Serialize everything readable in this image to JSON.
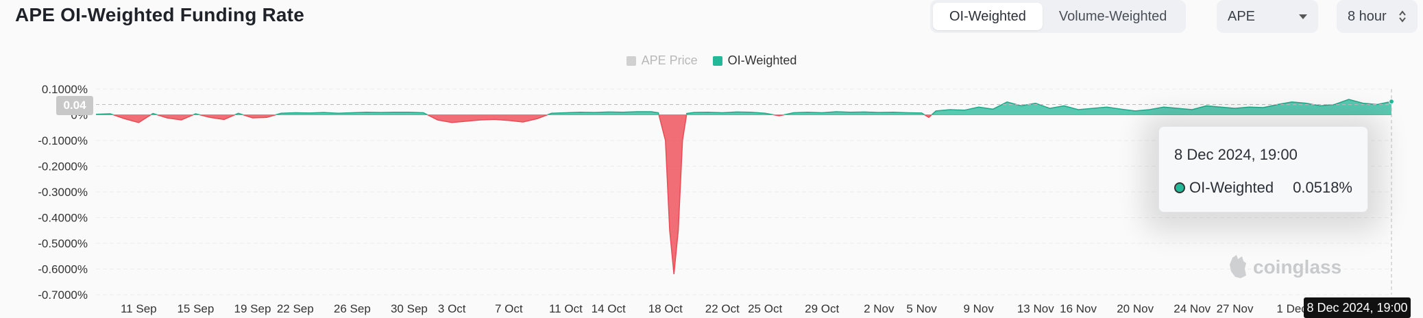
{
  "title": "APE OI-Weighted Funding Rate",
  "toggle": {
    "options": [
      "OI-Weighted",
      "Volume-Weighted"
    ],
    "selected": "OI-Weighted"
  },
  "asset_select": {
    "value": "APE"
  },
  "interval_select": {
    "value": "8 hour"
  },
  "colors": {
    "positive": "#23b898",
    "negative": "#f0555e",
    "price": "#d0d0d0"
  },
  "tooltip": {
    "date": "8 Dec 2024, 19:00",
    "series": "OI-Weighted",
    "value": "0.0518%"
  },
  "crosshair": {
    "x_label": "8 Dec 2024, 19:00",
    "y_label": "0.04"
  },
  "watermark": "coinglass",
  "chart_data": {
    "type": "area",
    "title": "APE OI-Weighted Funding Rate",
    "legend": [
      "APE Price",
      "OI-Weighted"
    ],
    "legend_placement": "top-center",
    "y_tick_labels": [
      "0.1000%",
      "0%",
      "-0.1000%",
      "-0.2000%",
      "-0.3000%",
      "-0.4000%",
      "-0.5000%",
      "-0.6000%",
      "-0.7000%"
    ],
    "y_ticks": [
      0.1,
      0,
      -0.1,
      -0.2,
      -0.3,
      -0.4,
      -0.5,
      -0.6,
      -0.7
    ],
    "ylim": [
      -0.7,
      0.1
    ],
    "x_tick_labels": [
      "11 Sep",
      "15 Sep",
      "19 Sep",
      "22 Sep",
      "26 Sep",
      "30 Sep",
      "3 Oct",
      "7 Oct",
      "11 Oct",
      "14 Oct",
      "18 Oct",
      "22 Oct",
      "25 Oct",
      "29 Oct",
      "2 Nov",
      "5 Nov",
      "9 Nov",
      "13 Nov",
      "16 Nov",
      "20 Nov",
      "24 Nov",
      "27 Nov",
      "1 Dec"
    ],
    "x_ticks": [
      3.0,
      7.0,
      11.0,
      14.0,
      18.0,
      22.0,
      25.0,
      29.0,
      33.0,
      36.0,
      40.0,
      44.0,
      47.0,
      51.0,
      55.0,
      58.0,
      62.0,
      66.0,
      69.0,
      73.0,
      77.0,
      80.0,
      84.0
    ],
    "x_unit": "days since 8 Sep 2024",
    "grid": true,
    "series": [
      {
        "name": "OI-Weighted",
        "x": [
          0,
          1,
          2,
          3,
          4,
          5,
          6,
          7,
          8,
          9,
          10,
          11,
          12,
          13,
          14,
          15,
          16,
          17,
          18,
          19,
          20,
          21,
          22,
          23,
          24,
          25,
          26,
          27,
          28,
          29,
          30,
          31,
          32,
          33,
          34,
          35,
          36,
          37,
          38,
          39,
          39.5,
          40,
          40.3,
          40.6,
          40.9,
          41.2,
          41.5,
          42,
          43,
          44,
          45,
          46,
          47,
          48,
          49,
          50,
          51,
          52,
          53,
          54,
          55,
          56,
          57,
          58,
          58.5,
          59,
          60,
          61,
          62,
          63,
          64,
          65,
          66,
          67,
          68,
          69,
          70,
          71,
          72,
          73,
          74,
          75,
          76,
          77,
          78,
          79,
          80,
          81,
          82,
          83,
          84,
          85,
          86,
          87,
          88,
          89,
          90,
          91
        ],
        "values": [
          0.002,
          0.004,
          -0.015,
          -0.03,
          0.005,
          -0.012,
          -0.02,
          0.004,
          -0.01,
          -0.018,
          0.006,
          -0.012,
          -0.01,
          0.006,
          0.008,
          0.007,
          0.009,
          0.006,
          0.008,
          0.01,
          0.009,
          0.01,
          0.01,
          0.008,
          -0.02,
          -0.03,
          -0.025,
          -0.02,
          -0.018,
          -0.022,
          -0.028,
          -0.015,
          0.006,
          0.008,
          0.01,
          0.009,
          0.011,
          0.01,
          0.012,
          0.012,
          0.008,
          -0.1,
          -0.45,
          -0.62,
          -0.45,
          -0.1,
          0.005,
          0.009,
          0.01,
          0.008,
          0.011,
          0.01,
          0.006,
          -0.004,
          0.008,
          0.01,
          0.008,
          0.012,
          0.01,
          0.011,
          0.009,
          0.01,
          0.008,
          0.007,
          -0.01,
          0.015,
          0.02,
          0.018,
          0.03,
          0.022,
          0.05,
          0.035,
          0.045,
          0.025,
          0.035,
          0.02,
          0.025,
          0.03,
          0.022,
          0.015,
          0.02,
          0.03,
          0.025,
          0.02,
          0.035,
          0.03,
          0.025,
          0.03,
          0.028,
          0.04,
          0.05,
          0.045,
          0.035,
          0.04,
          0.06,
          0.045,
          0.04,
          0.0518
        ]
      }
    ]
  }
}
